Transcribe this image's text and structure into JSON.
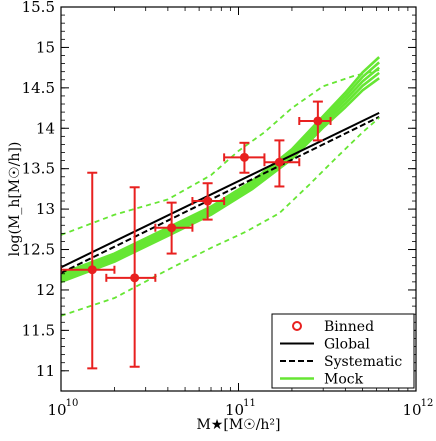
{
  "chart_data": {
    "type": "scatter",
    "title": "",
    "xlabel": "M★[M☉/h²]",
    "ylabel": "log(M_h[M☉/h])",
    "x_scale": "log",
    "xlim": [
      10000000000.0,
      1000000000000.0
    ],
    "ylim": [
      10.75,
      15.5
    ],
    "x_ticks": [
      {
        "value": 10000000000.0,
        "label": "10",
        "exp": "10"
      },
      {
        "value": 100000000000.0,
        "label": "10",
        "exp": "11"
      },
      {
        "value": 1000000000000.0,
        "label": "10",
        "exp": "12"
      }
    ],
    "y_ticks": [
      11,
      11.5,
      12,
      12.5,
      13,
      13.5,
      14,
      14.5,
      15,
      15.5
    ],
    "y_tick_labels": [
      "11",
      "11.5",
      "12",
      "12.5",
      "13",
      "13.5",
      "14",
      "14.5",
      "15",
      "15.5"
    ],
    "grid": false,
    "legend": {
      "position": "bottom-right",
      "entries": [
        "Binned",
        "Global",
        "Systematic",
        "Mock"
      ]
    },
    "colors": {
      "binned": "#e8201f",
      "global": "#000000",
      "systematic": "#000000",
      "mock": "#66e633"
    },
    "series": [
      {
        "name": "Binned",
        "kind": "points_with_errors",
        "points": [
          {
            "x": 15000000000.0,
            "y": 12.25,
            "xerr": [
              10000000000.0,
              20000000000.0
            ],
            "yerr": [
              11.03,
              13.45
            ]
          },
          {
            "x": 26000000000.0,
            "y": 12.15,
            "xerr": [
              18000000000.0,
              34000000000.0
            ],
            "yerr": [
              11.05,
              13.27
            ]
          },
          {
            "x": 42000000000.0,
            "y": 12.77,
            "xerr": [
              34000000000.0,
              55000000000.0
            ],
            "yerr": [
              12.45,
              13.08
            ]
          },
          {
            "x": 67000000000.0,
            "y": 13.1,
            "xerr": [
              55000000000.0,
              83000000000.0
            ],
            "yerr": [
              12.87,
              13.32
            ]
          },
          {
            "x": 108000000000.0,
            "y": 13.64,
            "xerr": [
              83000000000.0,
              140000000000.0
            ],
            "yerr": [
              13.45,
              13.82
            ]
          },
          {
            "x": 170000000000.0,
            "y": 13.58,
            "xerr": [
              140000000000.0,
              220000000000.0
            ],
            "yerr": [
              13.28,
              13.85
            ]
          },
          {
            "x": 280000000000.0,
            "y": 14.09,
            "xerr": [
              220000000000.0,
              330000000000.0
            ],
            "yerr": [
              13.85,
              14.33
            ]
          }
        ]
      },
      {
        "name": "Global",
        "kind": "line",
        "style": "solid",
        "x": [
          10000000000.0,
          620000000000.0
        ],
        "y": [
          12.28,
          14.19
        ]
      },
      {
        "name": "Systematic",
        "kind": "line",
        "style": "dashed",
        "x": [
          10000000000.0,
          620000000000.0
        ],
        "y": [
          12.21,
          14.14
        ]
      },
      {
        "name": "Mock",
        "kind": "line_band",
        "style": "solid",
        "x": [
          10000000000.0,
          20000000000.0,
          40000000000.0,
          70000000000.0,
          120000000000.0,
          200000000000.0,
          300000000000.0,
          400000000000.0,
          500000000000.0,
          620000000000.0
        ],
        "y": [
          12.15,
          12.4,
          12.72,
          12.98,
          13.3,
          13.68,
          14.08,
          14.35,
          14.58,
          14.75
        ],
        "spread": [
          0.05,
          0.05,
          0.05,
          0.05,
          0.05,
          0.06,
          0.07,
          0.09,
          0.11,
          0.13
        ]
      },
      {
        "name": "Mock upper",
        "kind": "line",
        "style": "dashed",
        "x": [
          10000000000.0,
          20000000000.0,
          40000000000.0,
          70000000000.0,
          100000000000.0,
          140000000000.0,
          200000000000.0,
          300000000000.0,
          450000000000.0,
          620000000000.0
        ],
        "y": [
          12.68,
          12.93,
          13.12,
          13.42,
          13.72,
          13.95,
          14.25,
          14.52,
          14.65,
          14.72
        ]
      },
      {
        "name": "Mock lower",
        "kind": "line",
        "style": "dashed",
        "x": [
          10000000000.0,
          20000000000.0,
          40000000000.0,
          70000000000.0,
          110000000000.0,
          170000000000.0,
          250000000000.0,
          350000000000.0,
          500000000000.0,
          620000000000.0
        ],
        "y": [
          11.68,
          11.9,
          12.25,
          12.52,
          12.72,
          12.95,
          13.3,
          13.62,
          13.95,
          14.13
        ]
      }
    ]
  }
}
